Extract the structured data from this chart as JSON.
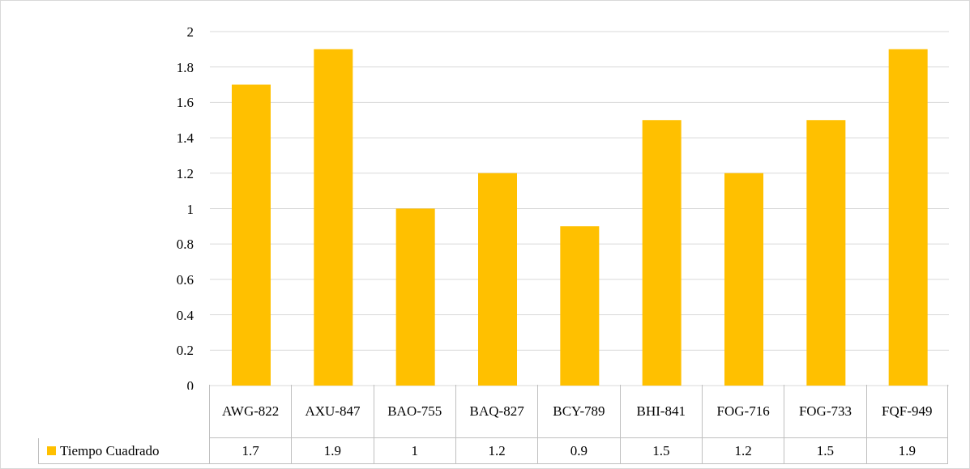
{
  "chart_data": {
    "type": "bar",
    "categories": [
      "AWG-822",
      "AXU-847",
      "BAO-755",
      "BAQ-827",
      "BCY-789",
      "BHI-841",
      "FOG-716",
      "FOG-733",
      "FQF-949"
    ],
    "series": [
      {
        "name": "Tiempo Cuadrado",
        "color": "#ffc000",
        "values": [
          1.7,
          1.9,
          1,
          1.2,
          0.9,
          1.5,
          1.2,
          1.5,
          1.9
        ]
      }
    ],
    "ylim": [
      0,
      2
    ],
    "yticks": [
      0,
      0.2,
      0.4,
      0.6,
      0.8,
      1,
      1.2,
      1.4,
      1.6,
      1.8,
      2
    ],
    "grid": "y",
    "legend": "bottom",
    "data_labels": true
  }
}
